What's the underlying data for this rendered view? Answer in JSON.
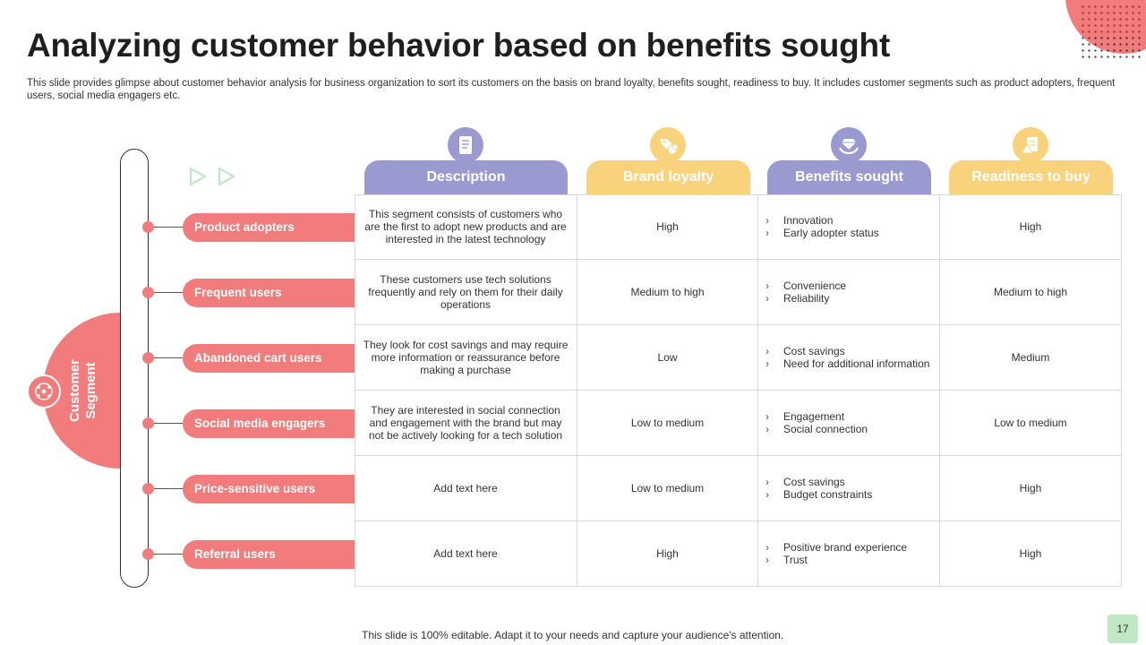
{
  "title": "Analyzing customer behavior based on benefits sought",
  "subtitle": "This slide provides glimpse about customer behavior analysis for business organization to sort its customers on the basis on brand loyalty, benefits sought, readiness to buy. It includes customer segments such as product adopters, frequent users, social media engagers etc.",
  "segment_label_line1": "Customer",
  "segment_label_line2": "Segment",
  "colors": {
    "coral": "#f27b7b",
    "purple": "#9a9ad0",
    "yellow": "#f8d37c",
    "page_badge": "#bfe8c5"
  },
  "columns": [
    {
      "label": "Description",
      "icon": "document-icon"
    },
    {
      "label": "Brand loyalty",
      "icon": "tag-coins-icon"
    },
    {
      "label": "Benefits sought",
      "icon": "diamond-hands-icon"
    },
    {
      "label": "Readiness to buy",
      "icon": "chart-report-icon"
    }
  ],
  "rows": [
    {
      "segment": "Product adopters",
      "description": "This segment consists of customers who are the first to adopt new products and are interested in the latest technology",
      "brand_loyalty": "High",
      "benefits": [
        "Innovation",
        "Early adopter status"
      ],
      "readiness": "High"
    },
    {
      "segment": "Frequent users",
      "description": "These customers use tech solutions frequently and rely on them for their daily operations",
      "brand_loyalty": "Medium to high",
      "benefits": [
        "Convenience",
        "Reliability"
      ],
      "readiness": "Medium to high"
    },
    {
      "segment": "Abandoned cart users",
      "description": "They look for cost savings and may require more information or reassurance before making a purchase",
      "brand_loyalty": "Low",
      "benefits": [
        "Cost savings",
        "Need for additional information"
      ],
      "readiness": "Medium"
    },
    {
      "segment": "Social media engagers",
      "description": "They are interested in social connection and engagement with the brand but may not be actively looking for a tech solution",
      "brand_loyalty": "Low to medium",
      "benefits": [
        "Engagement",
        "Social connection"
      ],
      "readiness": "Low to medium"
    },
    {
      "segment": "Price-sensitive users",
      "description": "Add text here",
      "brand_loyalty": "Low to medium",
      "benefits": [
        "Cost savings",
        "Budget constraints"
      ],
      "readiness": "High"
    },
    {
      "segment": "Referral users",
      "description": "Add text here",
      "brand_loyalty": "High",
      "benefits": [
        "Positive brand experience",
        "Trust"
      ],
      "readiness": "High"
    }
  ],
  "footer": "This slide is 100% editable. Adapt it to your needs and capture your audience's attention.",
  "page_number": "17"
}
